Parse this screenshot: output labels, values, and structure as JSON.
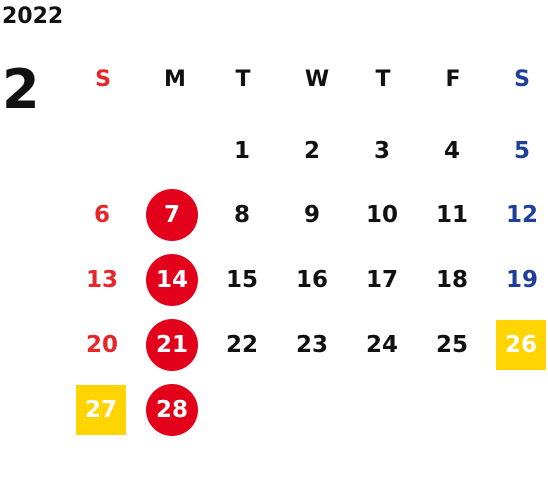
{
  "calendar": {
    "year": "2022",
    "month": "2",
    "weekdays": [
      "S",
      "M",
      "T",
      "W",
      "T",
      "F",
      "S"
    ],
    "days": [
      "1",
      "2",
      "3",
      "4",
      "5",
      "6",
      "7",
      "8",
      "9",
      "10",
      "11",
      "12",
      "13",
      "14",
      "15",
      "16",
      "17",
      "18",
      "19",
      "20",
      "21",
      "22",
      "23",
      "24",
      "25",
      "26",
      "27",
      "28"
    ]
  },
  "colors": {
    "sunday": "#e5272a",
    "saturday": "#1f3f98",
    "weekday": "#111111",
    "circle_highlight": "#e3001b",
    "square_highlight": "#ffd400"
  }
}
